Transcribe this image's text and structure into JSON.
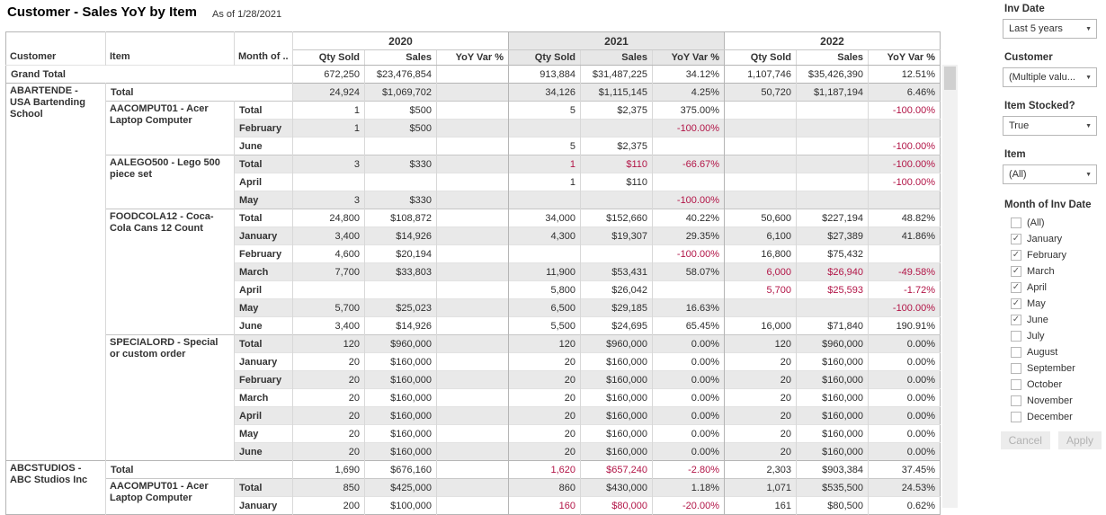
{
  "header": {
    "title": "Customer - Sales YoY by Item",
    "as_of": "As of 1/28/2021"
  },
  "pivot": {
    "left_headers": [
      "Customer",
      "Item",
      "Month of .."
    ],
    "years": [
      "2020",
      "2021",
      "2022"
    ],
    "highlight_year": "2021",
    "measures": [
      "Qty Sold",
      "Sales",
      "YoY Var %"
    ],
    "rows": [
      {
        "label": "Grand Total",
        "lspan": 3,
        "cells": [
          "672,250",
          "$23,476,854",
          "",
          "913,884",
          "$31,487,225",
          "34.12%",
          "1,107,746",
          "$35,426,390",
          "12.51%"
        ],
        "neg": []
      },
      {
        "cust": "ABARTENDE - USA Bartending School",
        "custspan": 21,
        "label": "Total",
        "lspan": 2,
        "cells": [
          "24,924",
          "$1,069,702",
          "",
          "34,126",
          "$1,115,145",
          "4.25%",
          "50,720",
          "$1,187,194",
          "6.46%"
        ],
        "neg": []
      },
      {
        "item": "AACOMPUT01 - Acer Laptop Computer",
        "itemspan": 3,
        "label": "Total",
        "cells": [
          "1",
          "$500",
          "",
          "5",
          "$2,375",
          "375.00%",
          "",
          "",
          "-100.00%"
        ],
        "neg": [
          8
        ]
      },
      {
        "label": "February",
        "cells": [
          "1",
          "$500",
          "",
          "",
          "",
          "-100.00%",
          "",
          "",
          ""
        ],
        "neg": [
          5
        ]
      },
      {
        "label": "June",
        "cells": [
          "",
          "",
          "",
          "5",
          "$2,375",
          "",
          "",
          "",
          "-100.00%"
        ],
        "neg": [
          8
        ]
      },
      {
        "item": "AALEGO500 - Lego 500 piece set",
        "itemspan": 3,
        "label": "Total",
        "cells": [
          "3",
          "$330",
          "",
          "1",
          "$110",
          "-66.67%",
          "",
          "",
          "-100.00%"
        ],
        "neg": [
          3,
          4,
          5,
          8
        ]
      },
      {
        "label": "April",
        "cells": [
          "",
          "",
          "",
          "1",
          "$110",
          "",
          "",
          "",
          "-100.00%"
        ],
        "neg": [
          8
        ]
      },
      {
        "label": "May",
        "cells": [
          "3",
          "$330",
          "",
          "",
          "",
          "-100.00%",
          "",
          "",
          ""
        ],
        "neg": [
          5
        ]
      },
      {
        "item": "FOODCOLA12 - Coca-Cola Cans 12 Count",
        "itemspan": 7,
        "label": "Total",
        "cells": [
          "24,800",
          "$108,872",
          "",
          "34,000",
          "$152,660",
          "40.22%",
          "50,600",
          "$227,194",
          "48.82%"
        ],
        "neg": []
      },
      {
        "label": "January",
        "cells": [
          "3,400",
          "$14,926",
          "",
          "4,300",
          "$19,307",
          "29.35%",
          "6,100",
          "$27,389",
          "41.86%"
        ],
        "neg": []
      },
      {
        "label": "February",
        "cells": [
          "4,600",
          "$20,194",
          "",
          "",
          "",
          "-100.00%",
          "16,800",
          "$75,432",
          ""
        ],
        "neg": [
          5
        ]
      },
      {
        "label": "March",
        "cells": [
          "7,700",
          "$33,803",
          "",
          "11,900",
          "$53,431",
          "58.07%",
          "6,000",
          "$26,940",
          "-49.58%"
        ],
        "neg": [
          6,
          7,
          8
        ]
      },
      {
        "label": "April",
        "cells": [
          "",
          "",
          "",
          "5,800",
          "$26,042",
          "",
          "5,700",
          "$25,593",
          "-1.72%"
        ],
        "neg": [
          6,
          7,
          8
        ]
      },
      {
        "label": "May",
        "cells": [
          "5,700",
          "$25,023",
          "",
          "6,500",
          "$29,185",
          "16.63%",
          "",
          "",
          "-100.00%"
        ],
        "neg": [
          8
        ]
      },
      {
        "label": "June",
        "cells": [
          "3,400",
          "$14,926",
          "",
          "5,500",
          "$24,695",
          "65.45%",
          "16,000",
          "$71,840",
          "190.91%"
        ],
        "neg": []
      },
      {
        "item": "SPECIALORD - Special or custom order",
        "itemspan": 7,
        "label": "Total",
        "cells": [
          "120",
          "$960,000",
          "",
          "120",
          "$960,000",
          "0.00%",
          "120",
          "$960,000",
          "0.00%"
        ],
        "neg": []
      },
      {
        "label": "January",
        "cells": [
          "20",
          "$160,000",
          "",
          "20",
          "$160,000",
          "0.00%",
          "20",
          "$160,000",
          "0.00%"
        ],
        "neg": []
      },
      {
        "label": "February",
        "cells": [
          "20",
          "$160,000",
          "",
          "20",
          "$160,000",
          "0.00%",
          "20",
          "$160,000",
          "0.00%"
        ],
        "neg": []
      },
      {
        "label": "March",
        "cells": [
          "20",
          "$160,000",
          "",
          "20",
          "$160,000",
          "0.00%",
          "20",
          "$160,000",
          "0.00%"
        ],
        "neg": []
      },
      {
        "label": "April",
        "cells": [
          "20",
          "$160,000",
          "",
          "20",
          "$160,000",
          "0.00%",
          "20",
          "$160,000",
          "0.00%"
        ],
        "neg": []
      },
      {
        "label": "May",
        "cells": [
          "20",
          "$160,000",
          "",
          "20",
          "$160,000",
          "0.00%",
          "20",
          "$160,000",
          "0.00%"
        ],
        "neg": []
      },
      {
        "label": "June",
        "cells": [
          "20",
          "$160,000",
          "",
          "20",
          "$160,000",
          "0.00%",
          "20",
          "$160,000",
          "0.00%"
        ],
        "neg": []
      },
      {
        "cust": "ABCSTUDIOS - ABC Studios Inc",
        "custspan": 3,
        "label": "Total",
        "lspan": 2,
        "cells": [
          "1,690",
          "$676,160",
          "",
          "1,620",
          "$657,240",
          "-2.80%",
          "2,303",
          "$903,384",
          "37.45%"
        ],
        "neg": [
          3,
          4,
          5
        ]
      },
      {
        "item": "AACOMPUT01 - Acer Laptop Computer",
        "itemspan": 2,
        "label": "Total",
        "cells": [
          "850",
          "$425,000",
          "",
          "860",
          "$430,000",
          "1.18%",
          "1,071",
          "$535,500",
          "24.53%"
        ],
        "neg": []
      },
      {
        "label": "January",
        "cells": [
          "200",
          "$100,000",
          "",
          "160",
          "$80,000",
          "-20.00%",
          "161",
          "$80,500",
          "0.62%"
        ],
        "neg": [
          3,
          4,
          5
        ]
      }
    ]
  },
  "filters": {
    "dropdowns": [
      {
        "label": "Inv Date",
        "value": "Last 5 years"
      },
      {
        "label": "Customer",
        "value": "(Multiple valu..."
      },
      {
        "label": "Item Stocked?",
        "value": "True"
      },
      {
        "label": "Item",
        "value": "(All)"
      }
    ],
    "month": {
      "label": "Month of Inv Date",
      "options": [
        {
          "label": "(All)",
          "checked": false
        },
        {
          "label": "January",
          "checked": true
        },
        {
          "label": "February",
          "checked": true
        },
        {
          "label": "March",
          "checked": true
        },
        {
          "label": "April",
          "checked": true
        },
        {
          "label": "May",
          "checked": true
        },
        {
          "label": "June",
          "checked": true
        },
        {
          "label": "July",
          "checked": false
        },
        {
          "label": "August",
          "checked": false
        },
        {
          "label": "September",
          "checked": false
        },
        {
          "label": "October",
          "checked": false
        },
        {
          "label": "November",
          "checked": false
        },
        {
          "label": "December",
          "checked": false
        }
      ]
    },
    "buttons": {
      "cancel": "Cancel",
      "apply": "Apply"
    }
  },
  "colors": {
    "negative": "#b21547",
    "band": "#e9e9e9",
    "header_highlight": "#e7e7e7"
  }
}
